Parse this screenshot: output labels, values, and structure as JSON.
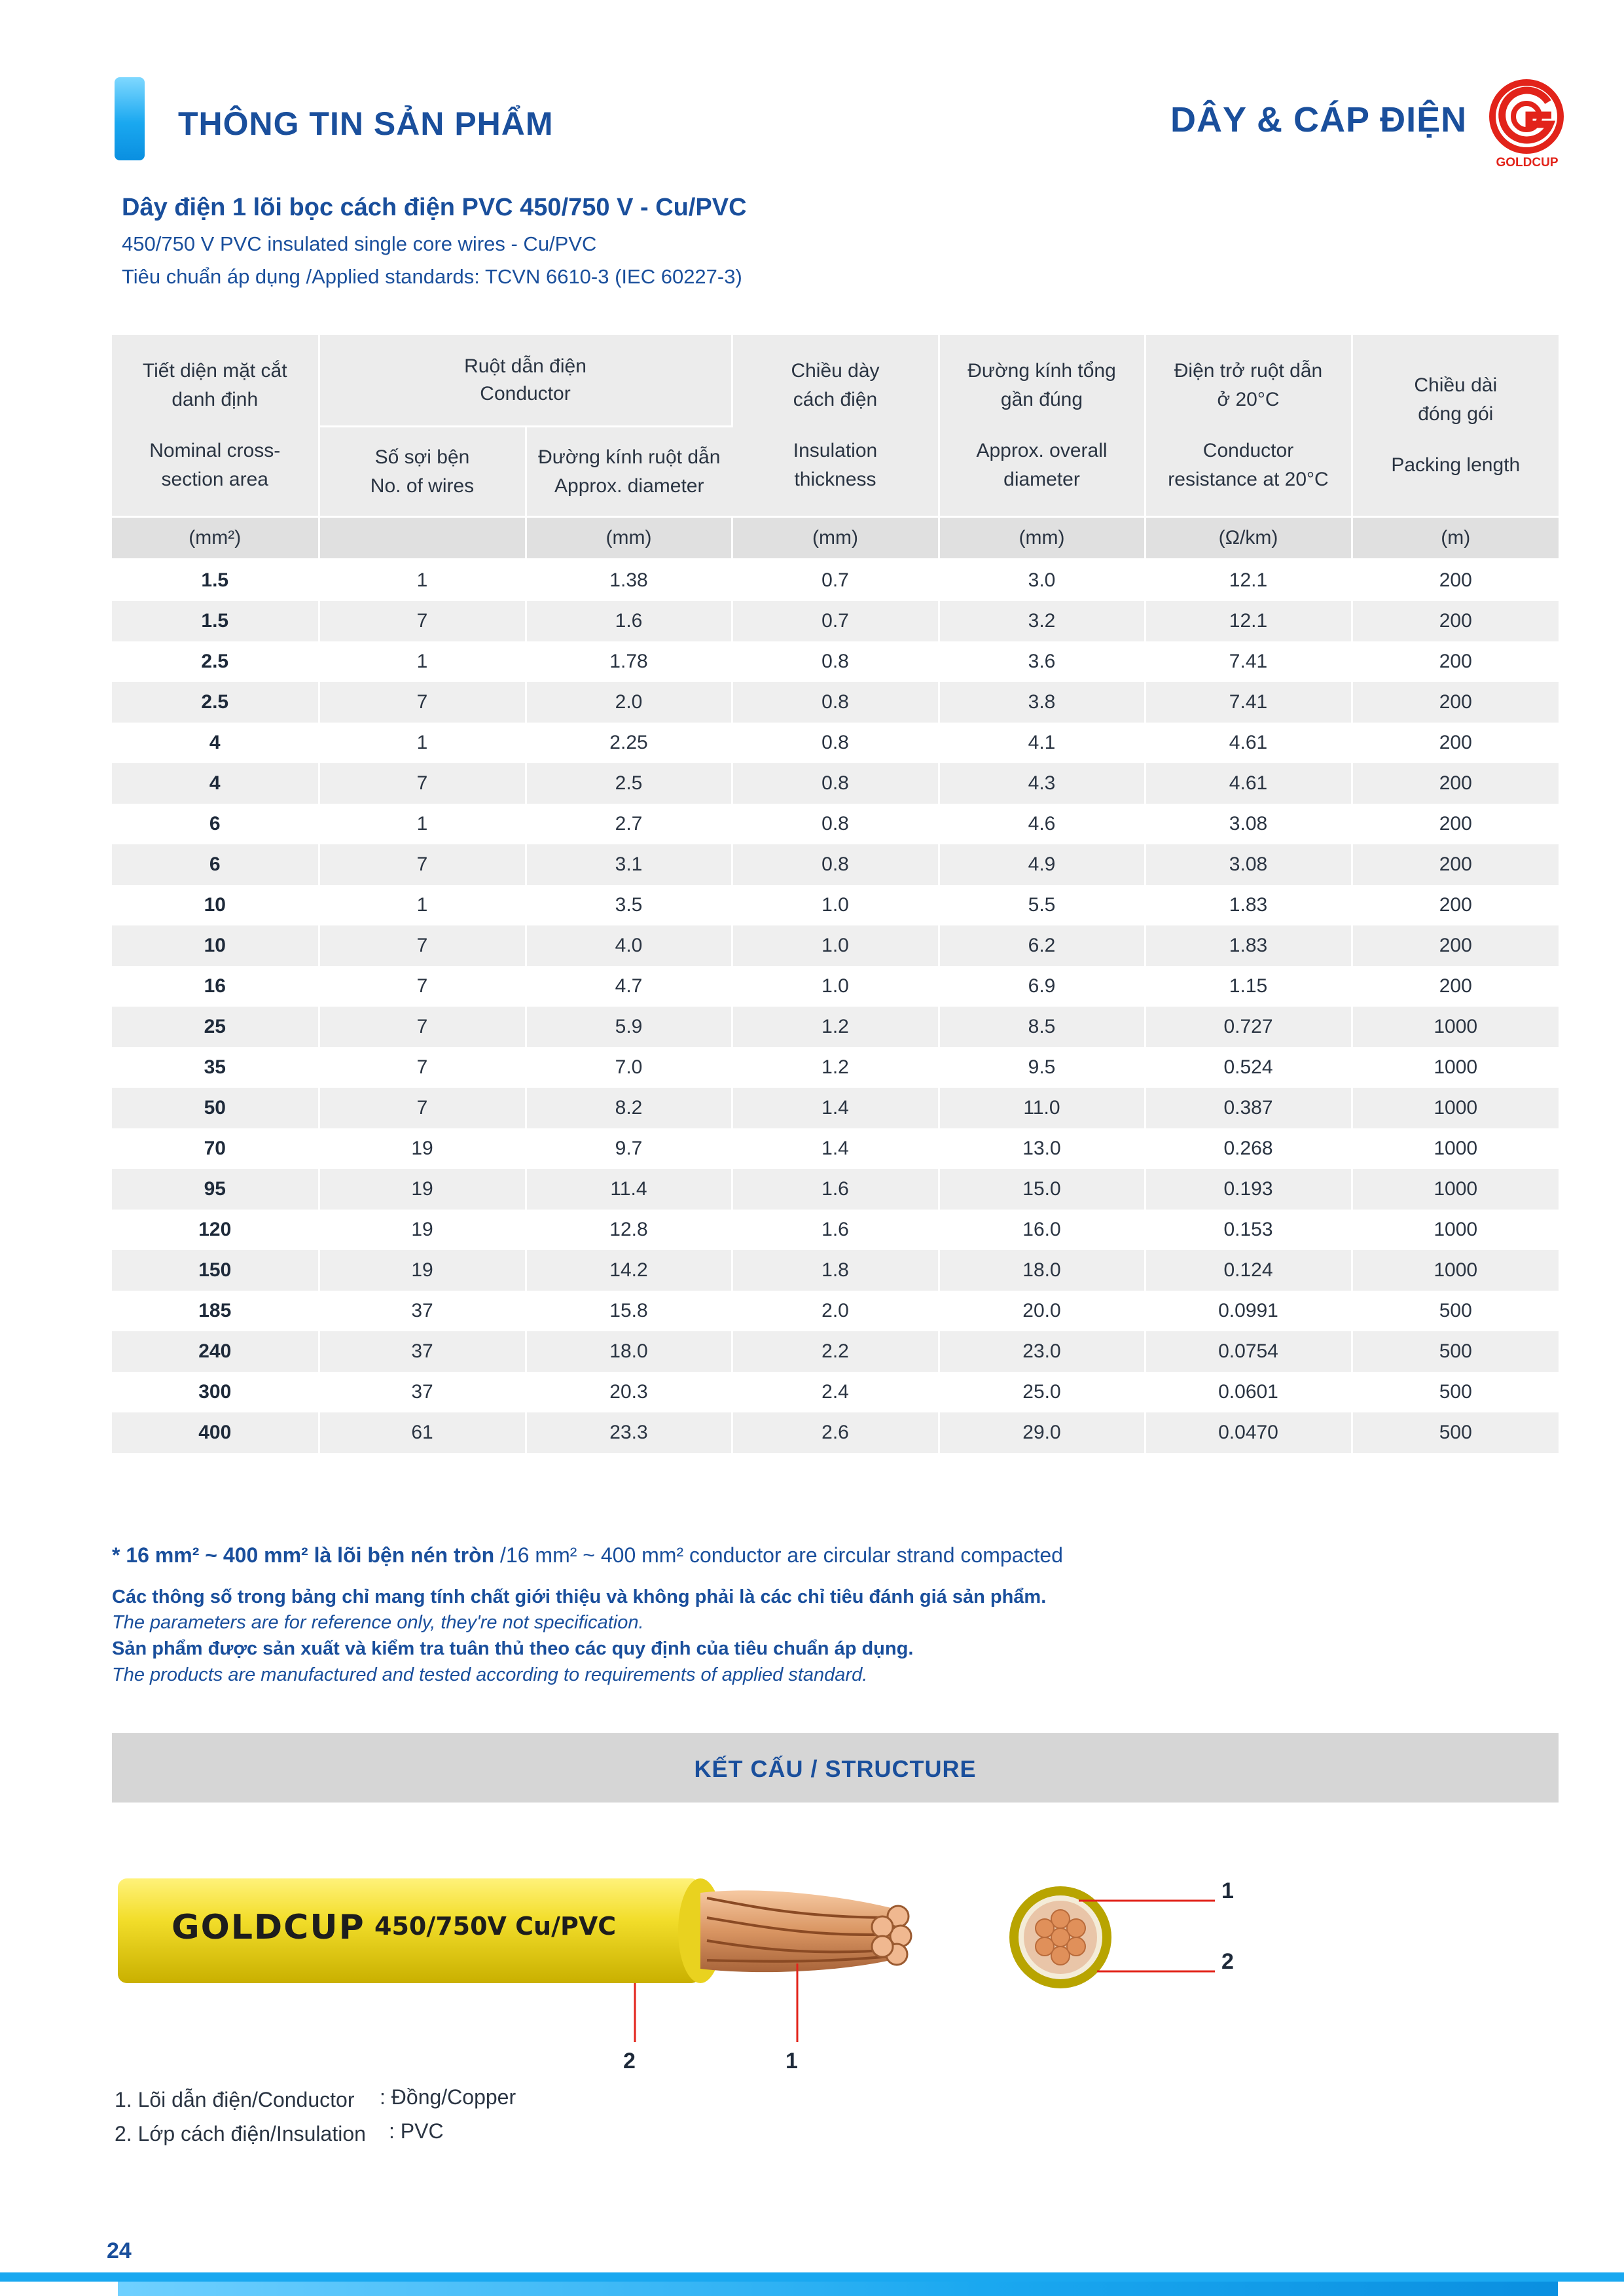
{
  "header": {
    "title": "THÔNG TIN SẢN PHẨM",
    "category": "DÂY & CÁP ĐIỆN",
    "logo_text": "GOLDCUP",
    "accent_color": "#1aa8f0",
    "logo_color": "#e2231a"
  },
  "product": {
    "title_vi": "Dây điện 1 lõi bọc cách điện PVC 450/750 V - Cu/PVC",
    "title_en": "450/750 V PVC insulated single core wires - Cu/PVC",
    "standard": "Tiêu chuẩn áp dụng /Applied standards: TCVN 6610-3 (IEC 60227-3)"
  },
  "table": {
    "headers": {
      "section": {
        "vi": [
          "Tiết diện mặt cắt",
          "danh định"
        ],
        "en": [
          "Nominal cross-",
          "section area"
        ],
        "unit": "(mm²)"
      },
      "conductor": {
        "vi": "Ruột dẫn điện",
        "en": "Conductor"
      },
      "wires": {
        "vi": "Số sợi bện",
        "en": "No. of wires",
        "unit": ""
      },
      "diameter": {
        "vi": "Đường kính ruột dẫn",
        "en": "Approx. diameter",
        "unit": "(mm)"
      },
      "insulation": {
        "vi": [
          "Chiều dày",
          "cách điện"
        ],
        "en": [
          "Insulation",
          "thickness"
        ],
        "unit": "(mm)"
      },
      "overall": {
        "vi": [
          "Đường kính tổng",
          "gần đúng"
        ],
        "en": [
          "Approx. overall",
          "diameter"
        ],
        "unit": "(mm)"
      },
      "resistance": {
        "vi": [
          "Điện trở ruột dẫn",
          "ở 20°C"
        ],
        "en": [
          "Conductor",
          "resistance at 20°C"
        ],
        "unit": "(Ω/km)"
      },
      "packing": {
        "vi": [
          "Chiều dài",
          "đóng gói"
        ],
        "en": [
          "Packing length"
        ],
        "unit": "(m)"
      }
    },
    "rows": [
      [
        "1.5",
        "1",
        "1.38",
        "0.7",
        "3.0",
        "12.1",
        "200"
      ],
      [
        "1.5",
        "7",
        "1.6",
        "0.7",
        "3.2",
        "12.1",
        "200"
      ],
      [
        "2.5",
        "1",
        "1.78",
        "0.8",
        "3.6",
        "7.41",
        "200"
      ],
      [
        "2.5",
        "7",
        "2.0",
        "0.8",
        "3.8",
        "7.41",
        "200"
      ],
      [
        "4",
        "1",
        "2.25",
        "0.8",
        "4.1",
        "4.61",
        "200"
      ],
      [
        "4",
        "7",
        "2.5",
        "0.8",
        "4.3",
        "4.61",
        "200"
      ],
      [
        "6",
        "1",
        "2.7",
        "0.8",
        "4.6",
        "3.08",
        "200"
      ],
      [
        "6",
        "7",
        "3.1",
        "0.8",
        "4.9",
        "3.08",
        "200"
      ],
      [
        "10",
        "1",
        "3.5",
        "1.0",
        "5.5",
        "1.83",
        "200"
      ],
      [
        "10",
        "7",
        "4.0",
        "1.0",
        "6.2",
        "1.83",
        "200"
      ],
      [
        "16",
        "7",
        "4.7",
        "1.0",
        "6.9",
        "1.15",
        "200"
      ],
      [
        "25",
        "7",
        "5.9",
        "1.2",
        "8.5",
        "0.727",
        "1000"
      ],
      [
        "35",
        "7",
        "7.0",
        "1.2",
        "9.5",
        "0.524",
        "1000"
      ],
      [
        "50",
        "7",
        "8.2",
        "1.4",
        "11.0",
        "0.387",
        "1000"
      ],
      [
        "70",
        "19",
        "9.7",
        "1.4",
        "13.0",
        "0.268",
        "1000"
      ],
      [
        "95",
        "19",
        "11.4",
        "1.6",
        "15.0",
        "0.193",
        "1000"
      ],
      [
        "120",
        "19",
        "12.8",
        "1.6",
        "16.0",
        "0.153",
        "1000"
      ],
      [
        "150",
        "19",
        "14.2",
        "1.8",
        "18.0",
        "0.124",
        "1000"
      ],
      [
        "185",
        "37",
        "15.8",
        "2.0",
        "20.0",
        "0.0991",
        "500"
      ],
      [
        "240",
        "37",
        "18.0",
        "2.2",
        "23.0",
        "0.0754",
        "500"
      ],
      [
        "300",
        "37",
        "20.3",
        "2.4",
        "25.0",
        "0.0601",
        "500"
      ],
      [
        "400",
        "61",
        "23.3",
        "2.6",
        "29.0",
        "0.0470",
        "500"
      ]
    ]
  },
  "notes": {
    "compact_bold": "* 16 mm² ~ 400 mm² là lõi bện nén tròn",
    "compact_rest": " /16 mm² ~ 400 mm² conductor are circular strand compacted",
    "line1": "Các thông số trong bảng chỉ mang tính chất giới thiệu và không phải là các chỉ tiêu đánh giá sản phẩm.",
    "line2": "The parameters are for reference only, they're not specification.",
    "line3": "Sản phẩm được sản xuất và kiểm tra tuân thủ theo các quy định của tiêu chuẩn áp dụng.",
    "line4": "The products are manufactured and tested according to requirements of applied standard."
  },
  "structure": {
    "title": "KẾT CẤU / STRUCTURE",
    "cable_brand": "GOLDCUP",
    "cable_spec": "450/750V Cu/PVC",
    "callouts": {
      "one": "1",
      "two": "2"
    },
    "legend": [
      {
        "label": "1. Lõi dẫn điện/Conductor",
        "value": ": Đồng/Copper"
      },
      {
        "label": "2. Lớp cách điện/Insulation",
        "value": ": PVC"
      }
    ],
    "insulation_color": "#f2dd2a",
    "conductor_color": "#e0a070"
  },
  "footer": {
    "page_number": "24"
  }
}
